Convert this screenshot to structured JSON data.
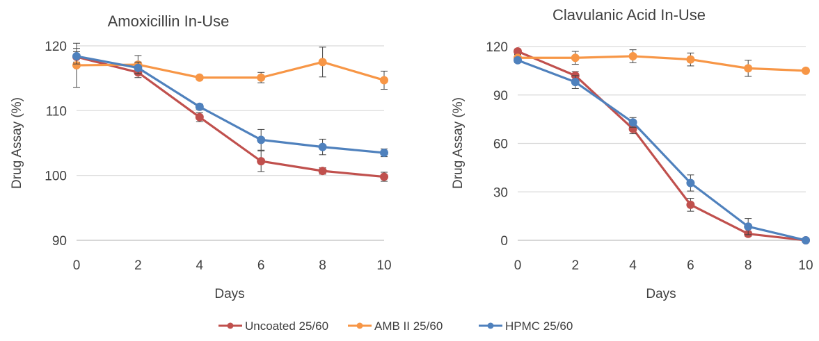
{
  "chart_data": [
    {
      "type": "line",
      "title": "Amoxicillin In-Use",
      "xlabel": "Days",
      "ylabel": "Drug Assay (%)",
      "x": [
        0,
        2,
        4,
        6,
        8,
        10
      ],
      "xlim": [
        0,
        10
      ],
      "ylim": [
        90,
        120
      ],
      "xticks": [
        "0",
        "2",
        "4",
        "6",
        "8",
        "10"
      ],
      "yticks": [
        "90",
        "100",
        "110",
        "120"
      ],
      "ytick_values": [
        90,
        100,
        110,
        120
      ],
      "grid": "horizontal",
      "series": [
        {
          "name": "Uncoated 25/60",
          "color": "#C0504D",
          "values": [
            118.3,
            115.9,
            109.0,
            102.2,
            100.7,
            99.8
          ],
          "errors": [
            0.8,
            0.8,
            0.7,
            1.6,
            0.5,
            0.7
          ]
        },
        {
          "name": "AMB II 25/60",
          "color": "#F79646",
          "values": [
            117.0,
            117.1,
            115.1,
            115.1,
            117.5,
            114.7
          ],
          "errors": [
            3.4,
            1.4,
            0.3,
            0.8,
            2.3,
            1.4
          ]
        },
        {
          "name": "HPMC 25/60",
          "color": "#4F81BD",
          "values": [
            118.4,
            116.6,
            110.6,
            105.5,
            104.4,
            103.5
          ],
          "errors": [
            1.2,
            0.9,
            0.4,
            1.6,
            1.2,
            0.6
          ]
        }
      ]
    },
    {
      "type": "line",
      "title": "Clavulanic Acid In-Use",
      "xlabel": "Days",
      "ylabel": "Drug Assay (%)",
      "x": [
        0,
        2,
        4,
        6,
        8,
        10
      ],
      "xlim": [
        0,
        10
      ],
      "ylim": [
        0,
        120
      ],
      "xticks": [
        "0",
        "2",
        "4",
        "6",
        "8",
        "10"
      ],
      "yticks": [
        "0",
        "30",
        "60",
        "90",
        "120"
      ],
      "ytick_values": [
        0,
        30,
        60,
        90,
        120
      ],
      "grid": "horizontal",
      "series": [
        {
          "name": "Uncoated 25/60",
          "color": "#C0504D",
          "values": [
            117.0,
            102.0,
            69.0,
            22.0,
            4.0,
            0.0
          ],
          "errors": [
            1.5,
            2.5,
            3.0,
            4.0,
            1.5,
            0.5
          ]
        },
        {
          "name": "AMB II 25/60",
          "color": "#F79646",
          "values": [
            113.0,
            113.0,
            114.0,
            112.0,
            106.5,
            105.0
          ],
          "errors": [
            2.0,
            4.0,
            4.0,
            4.0,
            5.0,
            1.0
          ]
        },
        {
          "name": "HPMC 25/60",
          "color": "#4F81BD",
          "values": [
            111.5,
            98.0,
            73.0,
            35.5,
            8.5,
            0.0
          ],
          "errors": [
            1.5,
            4.0,
            3.0,
            5.0,
            5.0,
            0.5
          ]
        }
      ]
    }
  ],
  "legend": {
    "placement": "bottom",
    "items": [
      {
        "label": "Uncoated 25/60",
        "color": "#C0504D"
      },
      {
        "label": "AMB II 25/60",
        "color": "#F79646"
      },
      {
        "label": "HPMC 25/60",
        "color": "#4F81BD"
      }
    ]
  },
  "colors": {
    "grid": "#D9D9D9",
    "axis": "#BFBFBF",
    "text": "#404040",
    "errorbar": "#404040"
  }
}
